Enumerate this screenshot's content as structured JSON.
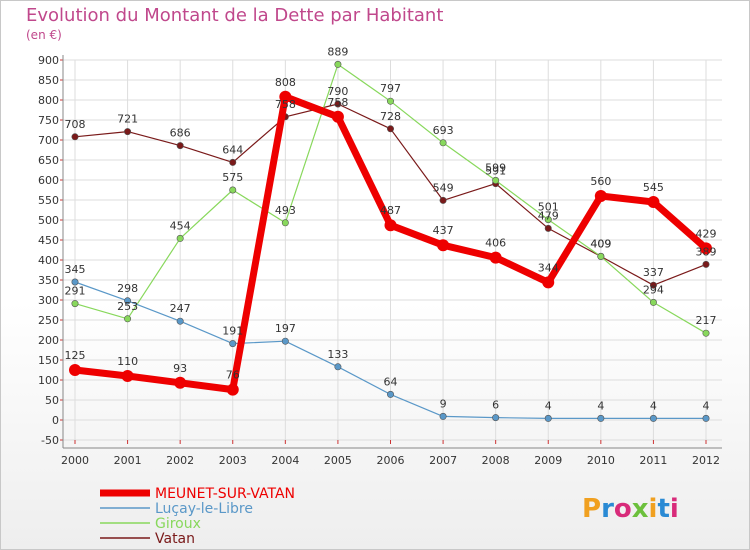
{
  "title": "Evolution du Montant de la Dette par Habitant",
  "subtitle": "(en €)",
  "logo_text": "Proxiti",
  "colors": {
    "title": "#c0488c",
    "grid": "#dddddd",
    "axis": "#888888"
  },
  "chart_data": {
    "type": "line",
    "title": "Evolution du Montant de la Dette par Habitant",
    "ylabel": "(en €)",
    "xlabel": "",
    "x": [
      "2000",
      "2001",
      "2002",
      "2003",
      "2004",
      "2005",
      "2006",
      "2007",
      "2008",
      "2009",
      "2010",
      "2011",
      "2012"
    ],
    "ylim": [
      -50,
      900
    ],
    "yticks": [
      -50,
      0,
      50,
      100,
      150,
      200,
      250,
      300,
      350,
      400,
      450,
      500,
      550,
      600,
      650,
      700,
      750,
      800,
      850,
      900
    ],
    "grid": true,
    "legend_position": "bottom-left",
    "series": [
      {
        "name": "Vatan",
        "color": "#7a1a1a",
        "width": 1.2,
        "values": [
          708,
          721,
          686,
          644,
          758,
          790,
          728,
          549,
          591,
          479,
          409,
          337,
          389
        ],
        "labels": [
          "708",
          "721",
          "686",
          "644",
          "758",
          "790",
          "728",
          "549",
          "591",
          "479",
          "409",
          "337",
          "389"
        ]
      },
      {
        "name": "Giroux",
        "color": "#88d85c",
        "width": 1.2,
        "values": [
          291,
          253,
          454,
          575,
          493,
          889,
          797,
          693,
          599,
          501,
          409,
          294,
          217
        ],
        "labels": [
          "291",
          "253",
          "454",
          "575",
          "493",
          "889",
          "797",
          "693",
          "599",
          "501",
          "409",
          "294",
          "217"
        ]
      },
      {
        "name": "Luçay-le-Libre",
        "color": "#5a98c8",
        "width": 1.2,
        "values": [
          345,
          298,
          247,
          191,
          197,
          133,
          64,
          9,
          6,
          4,
          4,
          4,
          4
        ],
        "labels": [
          "345",
          "298",
          "247",
          "191",
          "197",
          "133",
          "64",
          "9",
          "6",
          "4",
          "4",
          "4",
          "4"
        ]
      },
      {
        "name": "MEUNET-SUR-VATAN",
        "color": "#ee0000",
        "width": 7,
        "values": [
          125,
          110,
          93,
          76,
          808,
          758,
          487,
          437,
          406,
          344,
          560,
          545,
          429
        ],
        "labels": [
          "125",
          "110",
          "93",
          "76",
          "808",
          "758",
          "487",
          "437",
          "406",
          "344",
          "560",
          "545",
          "429"
        ]
      }
    ],
    "legend_order": [
      "MEUNET-SUR-VATAN",
      "Luçay-le-Libre",
      "Giroux",
      "Vatan"
    ]
  }
}
